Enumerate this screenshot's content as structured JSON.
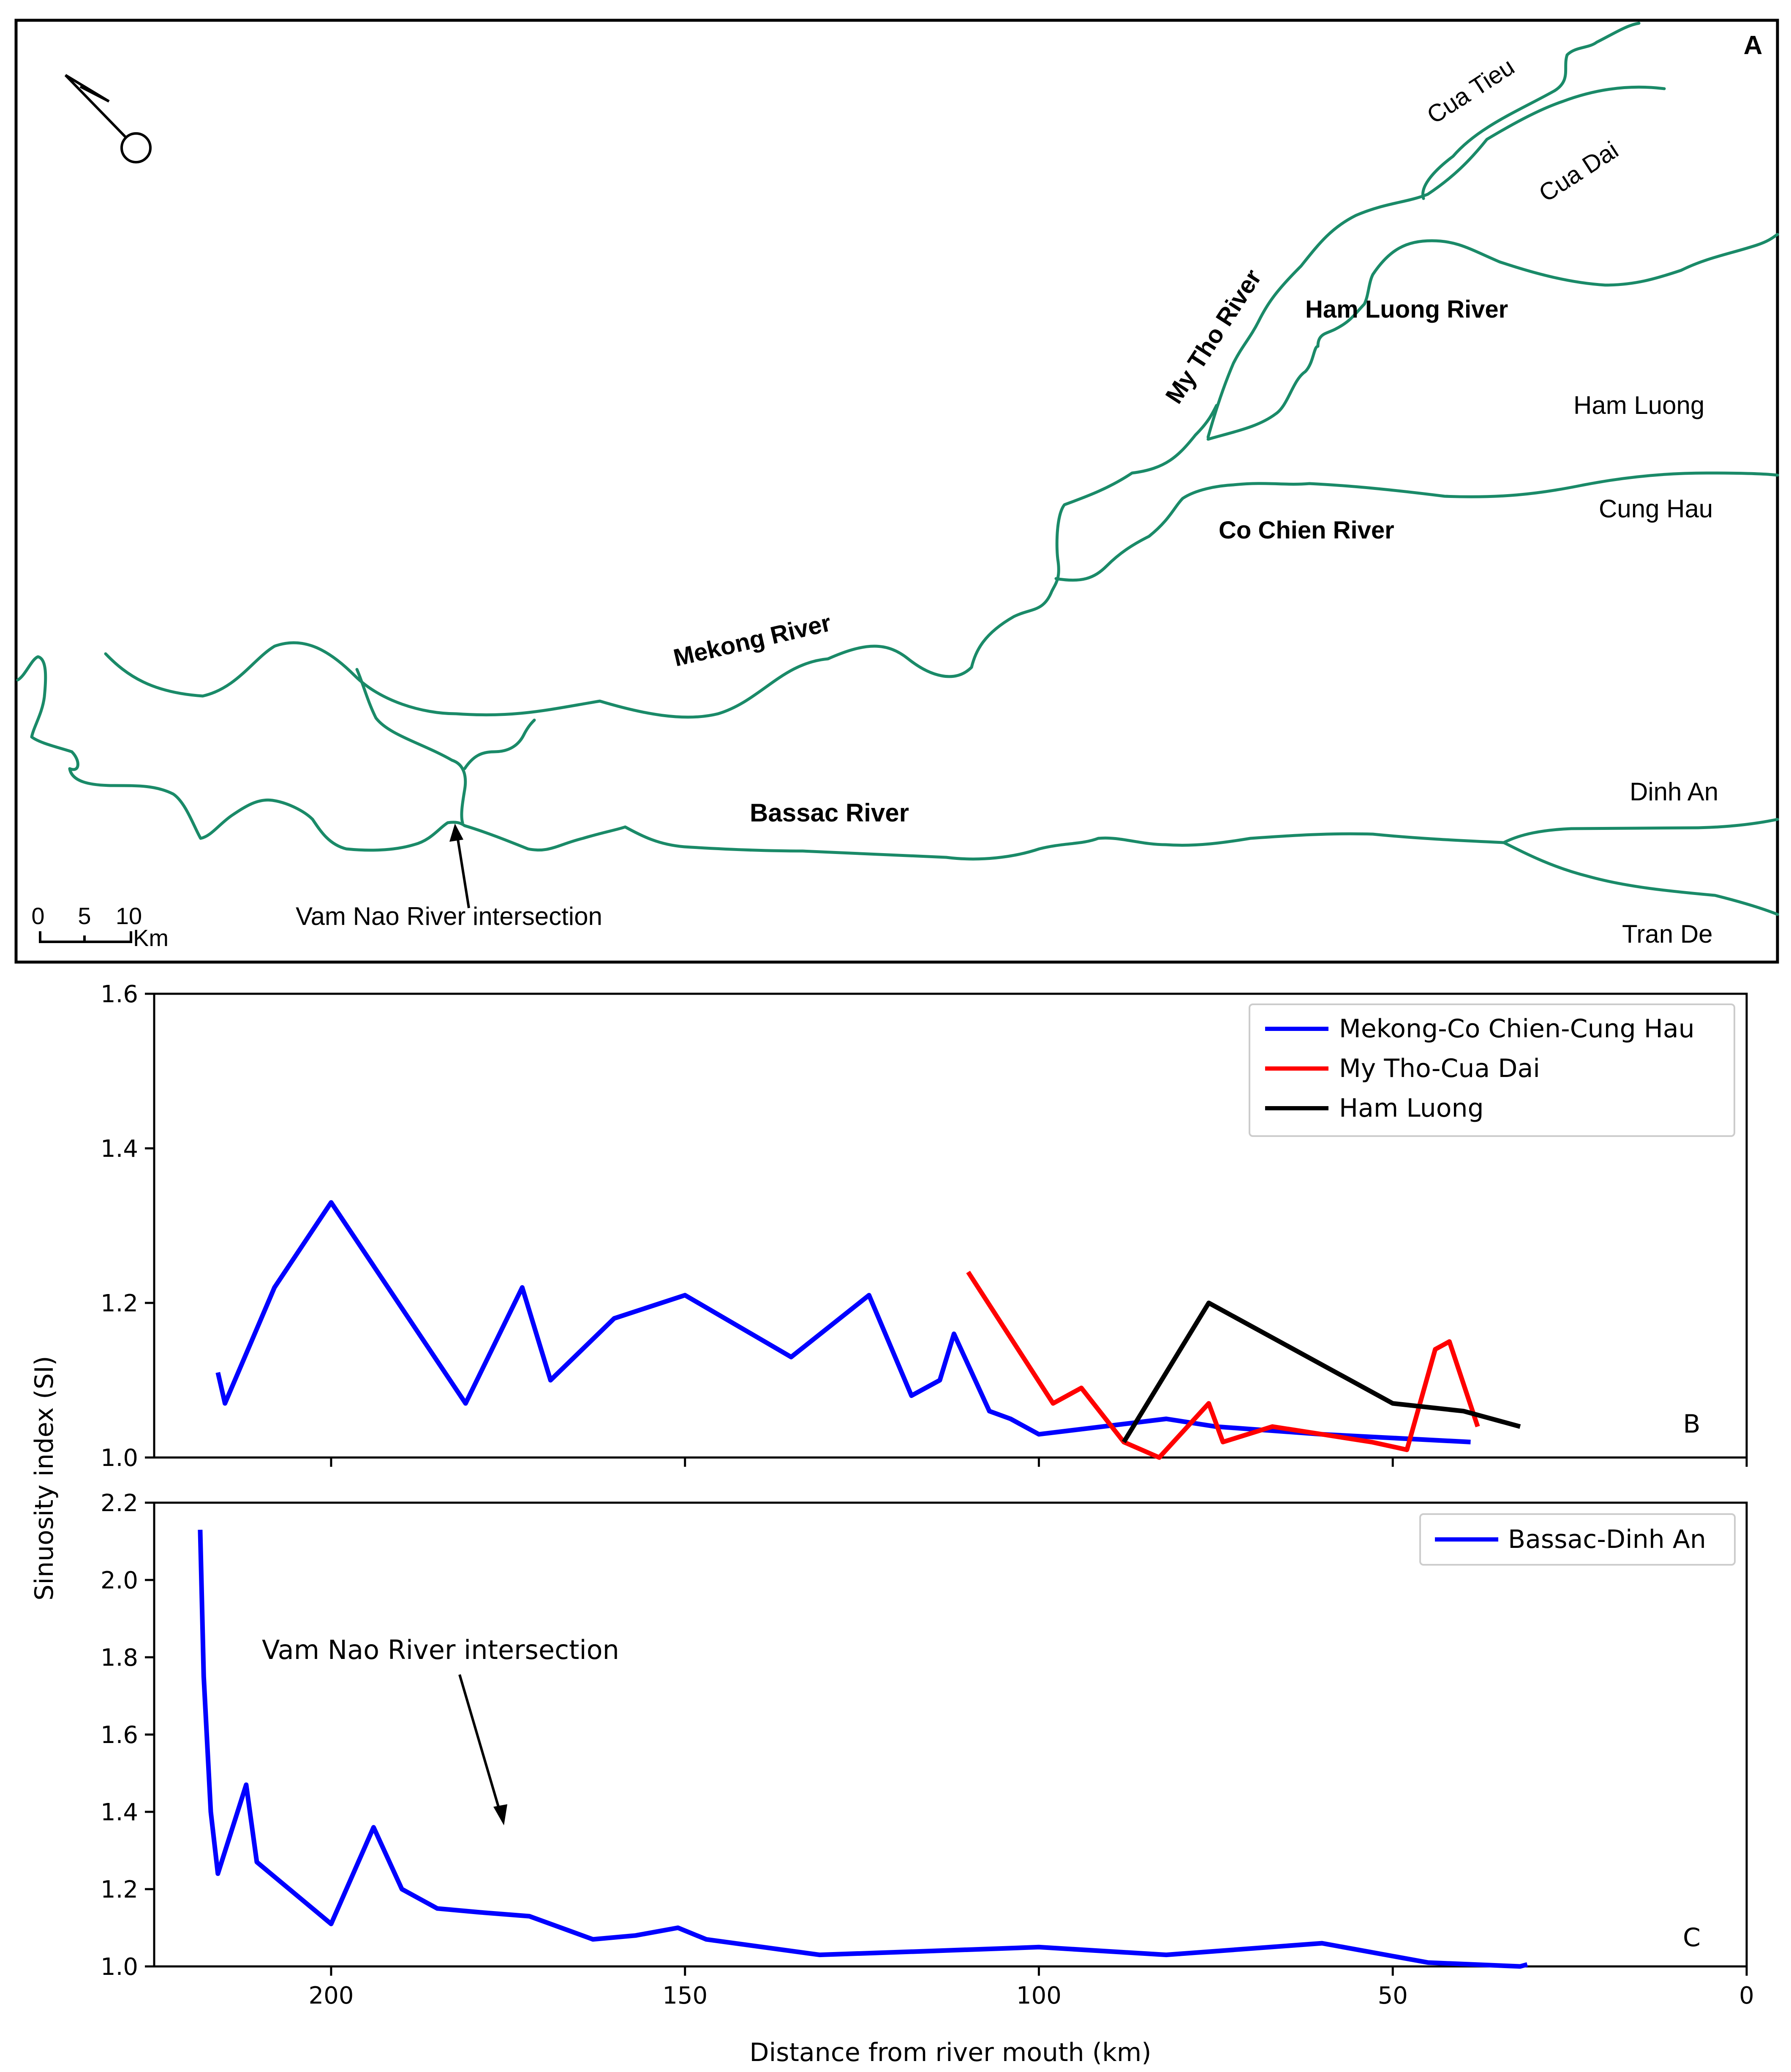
{
  "panel_a": {
    "label": "A",
    "labels_bold": {
      "my_tho": "My Tho River",
      "ham_luong_river": "Ham Luong River",
      "co_chien": "Co Chien River",
      "mekong": "Mekong River",
      "bassac": "Bassac River"
    },
    "labels_outlets": {
      "cua_tieu": "Cua Tieu",
      "cua_dai": "Cua Dai",
      "ham_luong": "Ham Luong",
      "cung_hau": "Cung Hau",
      "dinh_an": "Dinh An",
      "tran_de": "Tran De"
    },
    "vam_nao_label": "Vam Nao River intersection",
    "scale_ticks": [
      "0",
      "5",
      "10"
    ],
    "scale_unit": "Km",
    "river_color": "#1a8a68",
    "icons": [
      "north-arrow-icon"
    ]
  },
  "chart_data": [
    {
      "type": "line",
      "panel_label": "B",
      "ylabel": "Sinuosity index (SI)",
      "xlim": [
        225,
        0
      ],
      "ylim": [
        1.0,
        1.6
      ],
      "x_ticks": [
        200,
        150,
        100,
        50,
        0
      ],
      "y_ticks": [
        "1.0",
        "1.2",
        "1.4",
        "1.6"
      ],
      "legend_position": "top-right",
      "series": [
        {
          "name": "Mekong-Co Chien-Cung Hau",
          "color": "#0000ff",
          "points": [
            [
              216,
              1.11
            ],
            [
              215,
              1.07
            ],
            [
              208,
              1.22
            ],
            [
              200,
              1.33
            ],
            [
              181,
              1.07
            ],
            [
              173,
              1.22
            ],
            [
              169,
              1.1
            ],
            [
              160,
              1.18
            ],
            [
              150,
              1.21
            ],
            [
              135,
              1.13
            ],
            [
              124,
              1.21
            ],
            [
              118,
              1.08
            ],
            [
              114,
              1.1
            ],
            [
              112,
              1.16
            ],
            [
              107,
              1.06
            ],
            [
              104,
              1.05
            ],
            [
              100,
              1.03
            ],
            [
              82,
              1.05
            ],
            [
              75,
              1.04
            ],
            [
              60,
              1.03
            ],
            [
              39,
              1.02
            ]
          ]
        },
        {
          "name": "My Tho-Cua Dai",
          "color": "#ff0000",
          "points": [
            [
              110,
              1.24
            ],
            [
              98,
              1.07
            ],
            [
              94,
              1.09
            ],
            [
              88,
              1.02
            ],
            [
              83,
              1.0
            ],
            [
              76,
              1.07
            ],
            [
              74,
              1.02
            ],
            [
              67,
              1.04
            ],
            [
              60,
              1.03
            ],
            [
              53,
              1.02
            ],
            [
              48,
              1.01
            ],
            [
              44,
              1.14
            ],
            [
              42,
              1.15
            ],
            [
              38,
              1.04
            ]
          ]
        },
        {
          "name": "Ham Luong",
          "color": "#000000",
          "points": [
            [
              88,
              1.02
            ],
            [
              76,
              1.2
            ],
            [
              50,
              1.07
            ],
            [
              40,
              1.06
            ],
            [
              32,
              1.04
            ]
          ]
        }
      ]
    },
    {
      "type": "line",
      "panel_label": "C",
      "xlabel": "Distance from river mouth (km)",
      "ylabel": "Sinuosity index (SI)",
      "xlim": [
        225,
        0
      ],
      "ylim": [
        1.0,
        2.2
      ],
      "x_ticks": [
        200,
        150,
        100,
        50,
        0
      ],
      "y_ticks": [
        "1.0",
        "1.2",
        "1.4",
        "1.6",
        "1.8",
        "2.0",
        "2.2"
      ],
      "legend_position": "top-right",
      "annotation": "Vam Nao River intersection",
      "series": [
        {
          "name": "Bassac-Dinh An",
          "color": "#0000ff",
          "points": [
            [
              218.5,
              2.13
            ],
            [
              218,
              1.75
            ],
            [
              217,
              1.4
            ],
            [
              216,
              1.24
            ],
            [
              212,
              1.47
            ],
            [
              210.5,
              1.27
            ],
            [
              200,
              1.11
            ],
            [
              194,
              1.36
            ],
            [
              190,
              1.2
            ],
            [
              185,
              1.15
            ],
            [
              179,
              1.14
            ],
            [
              172,
              1.13
            ],
            [
              163,
              1.07
            ],
            [
              157,
              1.08
            ],
            [
              151,
              1.1
            ],
            [
              147,
              1.07
            ],
            [
              131,
              1.03
            ],
            [
              115,
              1.04
            ],
            [
              100,
              1.05
            ],
            [
              82,
              1.03
            ],
            [
              60,
              1.06
            ],
            [
              45,
              1.01
            ],
            [
              32,
              1.0
            ],
            [
              31,
              1.005
            ]
          ]
        }
      ]
    }
  ]
}
